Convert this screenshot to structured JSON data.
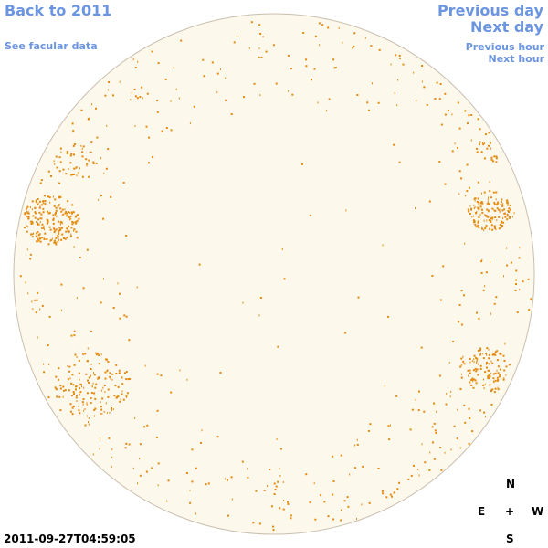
{
  "nav": {
    "back_label": "Back to 2011",
    "facular_label": "See facular data",
    "previous_day_label": "Previous day",
    "next_day_label": "Next day",
    "previous_hour_label": "Previous hour",
    "next_hour_label": "Next hour"
  },
  "compass": {
    "north": "N",
    "east": "E",
    "west": "W",
    "south": "S",
    "center": "+"
  },
  "timestamp": "2011-09-27T04:59:05",
  "colors": {
    "link": "#6b95e0",
    "disk_fill": "#fdf8ec",
    "disk_edge": "#c9bfae",
    "facula": "#e48a0e"
  }
}
